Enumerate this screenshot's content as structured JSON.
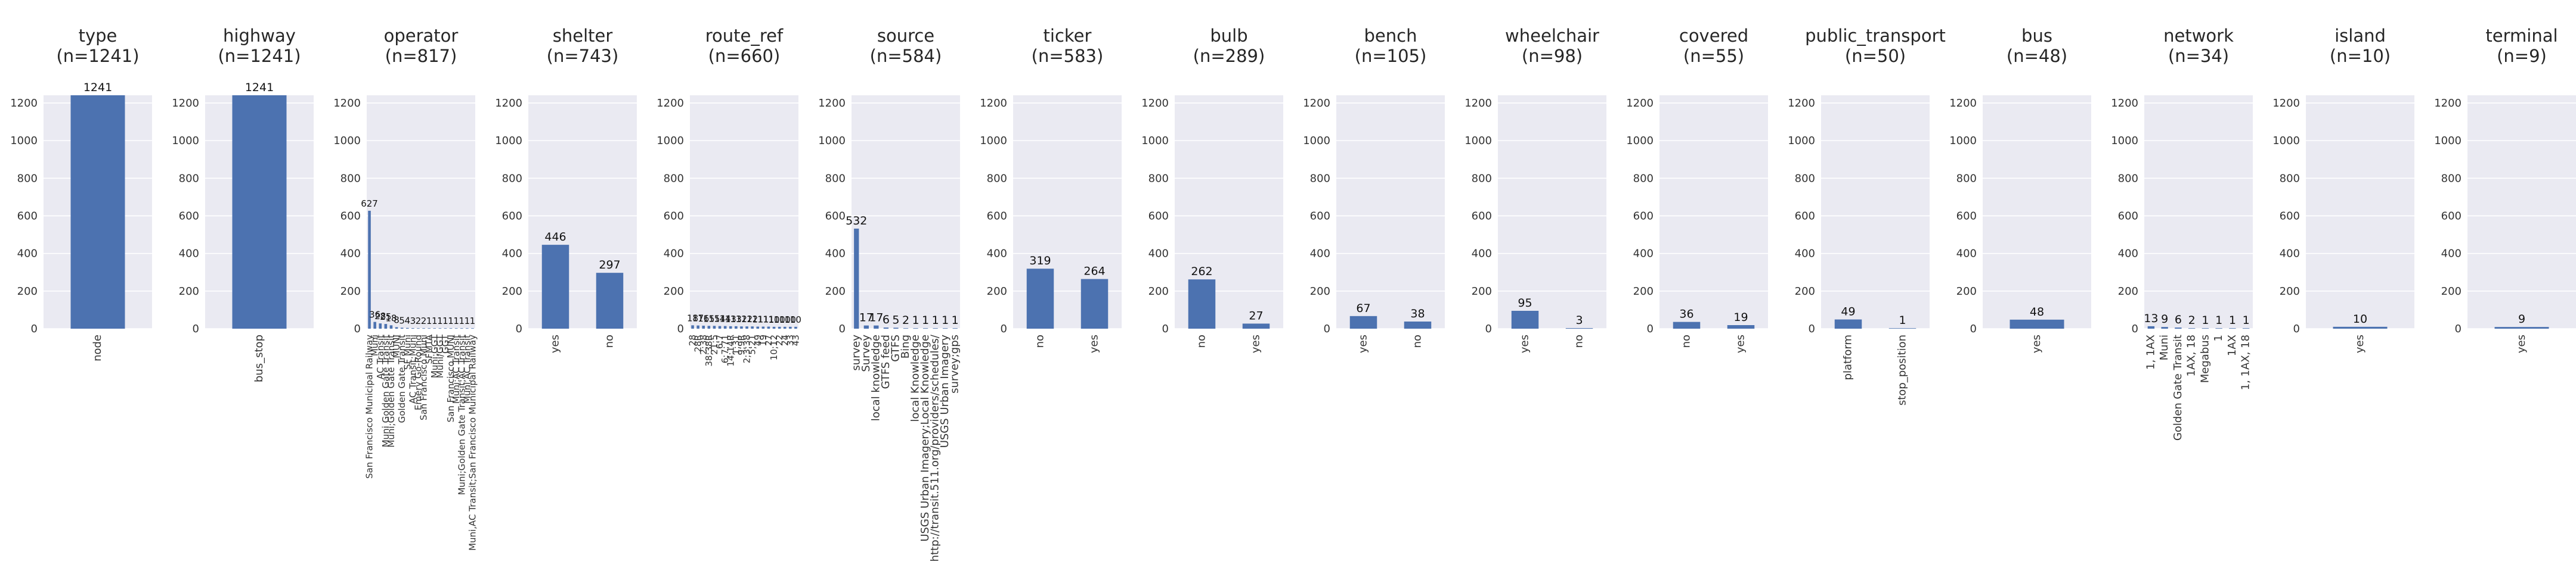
{
  "chart_data": [
    {
      "type": "bar",
      "title": "type",
      "subtitle": "(n=1241)",
      "categories": [
        "node"
      ],
      "values": [
        1241
      ],
      "ylim": [
        0,
        1241
      ],
      "yticks": [
        0,
        200,
        400,
        600,
        800,
        1000,
        1200
      ],
      "grid": true
    },
    {
      "type": "bar",
      "title": "highway",
      "subtitle": "(n=1241)",
      "categories": [
        "bus_stop"
      ],
      "values": [
        1241
      ],
      "ylim": [
        0,
        1241
      ],
      "yticks": [
        0,
        200,
        400,
        600,
        800,
        1000,
        1200
      ],
      "grid": true
    },
    {
      "type": "bar",
      "title": "operator",
      "subtitle": "(n=817)",
      "categories": [
        "San Francisco Municipal Railway",
        "Muni",
        "AC Transit",
        "Muni Golden Gate Transit",
        "Muni;Golden Gate Transit",
        "MUNI",
        "Golden Gate Transit",
        "SF Muni",
        "AC Transit;Muni",
        "Emery Go-Round",
        "San Francisco Muni",
        "SFMTA",
        "Muni;GGT",
        "Muni/GGT",
        "GGT",
        "San Francisco MUNI",
        "Muni;AC Transit",
        "Muni;Golden Gate Transit;AC Transit",
        "Muni,AC Transit",
        "Muni,AC Transit;San Francisco Municipal Railway"
      ],
      "values": [
        627,
        36,
        28,
        25,
        18,
        8,
        5,
        4,
        3,
        2,
        2,
        1,
        1,
        1,
        1,
        1,
        1,
        1,
        1,
        1
      ],
      "ylim": [
        0,
        1241
      ],
      "yticks": [
        0,
        200,
        400,
        600,
        800,
        1000,
        1200
      ],
      "grid": true
    },
    {
      "type": "bar",
      "title": "shelter",
      "subtitle": "(n=743)",
      "categories": [
        "yes",
        "no"
      ],
      "values": [
        446,
        297
      ],
      "ylim": [
        0,
        1241
      ],
      "yticks": [
        0,
        200,
        400,
        600,
        800,
        1000,
        1200
      ],
      "grid": true
    },
    {
      "type": "bar",
      "title": "route_ref",
      "subtitle": "(n=660)",
      "categories": [
        "28",
        "28R",
        "2;38",
        "38;38R",
        "21;5",
        "6;7",
        "6;7;71",
        "14;14R",
        "1;31",
        "9;9R",
        "2;3;38",
        "5;21",
        "49",
        "19",
        "27",
        "10;12",
        "22",
        "24",
        "33",
        "43"
      ],
      "values": [
        18,
        17,
        16,
        15,
        15,
        14,
        14,
        13,
        13,
        12,
        12,
        12,
        11,
        11,
        11,
        10,
        10,
        10,
        10,
        10
      ],
      "ylim": [
        0,
        1241
      ],
      "yticks": [
        0,
        200,
        400,
        600,
        800,
        1000,
        1200
      ],
      "grid": true
    },
    {
      "type": "bar",
      "title": "source",
      "subtitle": "(n=584)",
      "categories": [
        "survey",
        "Survey",
        "local knowledge",
        "GTFS feed",
        "GTFS",
        "Bing",
        "local Knowledge",
        "USGS Urban Imagery;Local Knowledge",
        "http://transit.511.org/providers/schedules/",
        "USGS Urban Imagery",
        "survey;gps"
      ],
      "values": [
        532,
        17,
        17,
        6,
        5,
        2,
        1,
        1,
        1,
        1,
        1
      ],
      "ylim": [
        0,
        1241
      ],
      "yticks": [
        0,
        200,
        400,
        600,
        800,
        1000,
        1200
      ],
      "grid": true
    },
    {
      "type": "bar",
      "title": "ticker",
      "subtitle": "(n=583)",
      "categories": [
        "no",
        "yes"
      ],
      "values": [
        319,
        264
      ],
      "ylim": [
        0,
        1241
      ],
      "yticks": [
        0,
        200,
        400,
        600,
        800,
        1000,
        1200
      ],
      "grid": true
    },
    {
      "type": "bar",
      "title": "bulb",
      "subtitle": "(n=289)",
      "categories": [
        "no",
        "yes"
      ],
      "values": [
        262,
        27
      ],
      "ylim": [
        0,
        1241
      ],
      "yticks": [
        0,
        200,
        400,
        600,
        800,
        1000,
        1200
      ],
      "grid": true
    },
    {
      "type": "bar",
      "title": "bench",
      "subtitle": "(n=105)",
      "categories": [
        "yes",
        "no"
      ],
      "values": [
        67,
        38
      ],
      "ylim": [
        0,
        1241
      ],
      "yticks": [
        0,
        200,
        400,
        600,
        800,
        1000,
        1200
      ],
      "grid": true
    },
    {
      "type": "bar",
      "title": "wheelchair",
      "subtitle": "(n=98)",
      "categories": [
        "yes",
        "no"
      ],
      "values": [
        95,
        3
      ],
      "ylim": [
        0,
        1241
      ],
      "yticks": [
        0,
        200,
        400,
        600,
        800,
        1000,
        1200
      ],
      "grid": true
    },
    {
      "type": "bar",
      "title": "covered",
      "subtitle": "(n=55)",
      "categories": [
        "no",
        "yes"
      ],
      "values": [
        36,
        19
      ],
      "ylim": [
        0,
        1241
      ],
      "yticks": [
        0,
        200,
        400,
        600,
        800,
        1000,
        1200
      ],
      "grid": true
    },
    {
      "type": "bar",
      "title": "public_transport",
      "subtitle": "(n=50)",
      "categories": [
        "platform",
        "stop_position"
      ],
      "values": [
        49,
        1
      ],
      "ylim": [
        0,
        1241
      ],
      "yticks": [
        0,
        200,
        400,
        600,
        800,
        1000,
        1200
      ],
      "grid": true
    },
    {
      "type": "bar",
      "title": "bus",
      "subtitle": "(n=48)",
      "categories": [
        "yes"
      ],
      "values": [
        48
      ],
      "ylim": [
        0,
        1241
      ],
      "yticks": [
        0,
        200,
        400,
        600,
        800,
        1000,
        1200
      ],
      "grid": true
    },
    {
      "type": "bar",
      "title": "network",
      "subtitle": "(n=34)",
      "categories": [
        "1, 1AX",
        "Muni",
        "Golden Gate Transit",
        "1AX, 18",
        "Megabus",
        "1",
        "1AX",
        "1, 1AX, 18"
      ],
      "values": [
        13,
        9,
        6,
        2,
        1,
        1,
        1,
        1
      ],
      "ylim": [
        0,
        1241
      ],
      "yticks": [
        0,
        200,
        400,
        600,
        800,
        1000,
        1200
      ],
      "grid": true
    },
    {
      "type": "bar",
      "title": "island",
      "subtitle": "(n=10)",
      "categories": [
        "yes"
      ],
      "values": [
        10
      ],
      "ylim": [
        0,
        1241
      ],
      "yticks": [
        0,
        200,
        400,
        600,
        800,
        1000,
        1200
      ],
      "grid": true
    },
    {
      "type": "bar",
      "title": "terminal",
      "subtitle": "(n=9)",
      "categories": [
        "yes"
      ],
      "values": [
        9
      ],
      "ylim": [
        0,
        1241
      ],
      "yticks": [
        0,
        200,
        400,
        600,
        800,
        1000,
        1200
      ],
      "grid": true
    }
  ],
  "colors": {
    "bar": "#4c72b0",
    "plot_bg": "#eaeaf2",
    "grid": "#ffffff",
    "text": "#262626",
    "tick": "#333333"
  }
}
